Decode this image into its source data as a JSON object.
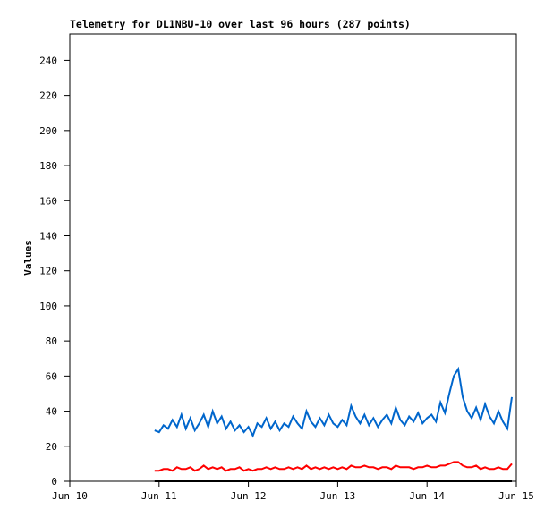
{
  "chart_data": {
    "type": "line",
    "title": "Telemetry for DL1NBU-10 over last 96 hours (287 points)",
    "y_label": "Values",
    "x": [
      0.95,
      1.0,
      1.05,
      1.1,
      1.15,
      1.2,
      1.25,
      1.3,
      1.35,
      1.4,
      1.45,
      1.5,
      1.55,
      1.6,
      1.65,
      1.7,
      1.75,
      1.8,
      1.85,
      1.9,
      1.95,
      2.0,
      2.05,
      2.1,
      2.15,
      2.2,
      2.25,
      2.3,
      2.35,
      2.4,
      2.45,
      2.5,
      2.55,
      2.6,
      2.65,
      2.7,
      2.75,
      2.8,
      2.85,
      2.9,
      2.95,
      3.0,
      3.05,
      3.1,
      3.15,
      3.2,
      3.25,
      3.3,
      3.35,
      3.4,
      3.45,
      3.5,
      3.55,
      3.6,
      3.65,
      3.7,
      3.75,
      3.8,
      3.85,
      3.9,
      3.95,
      4.0,
      4.05,
      4.1,
      4.15,
      4.2,
      4.25,
      4.3,
      4.35,
      4.4,
      4.45,
      4.5,
      4.55,
      4.6,
      4.65,
      4.7,
      4.75,
      4.8,
      4.85,
      4.9,
      4.95
    ],
    "series": [
      {
        "color": "#0066cc",
        "values": [
          29,
          28,
          32,
          30,
          35,
          31,
          38,
          30,
          36,
          29,
          33,
          38,
          31,
          40,
          33,
          37,
          30,
          34,
          29,
          32,
          28,
          31,
          26,
          33,
          31,
          36,
          30,
          34,
          29,
          33,
          31,
          37,
          33,
          30,
          40,
          34,
          31,
          36,
          32,
          38,
          33,
          31,
          35,
          32,
          43,
          37,
          33,
          38,
          32,
          36,
          31,
          35,
          38,
          33,
          42,
          35,
          32,
          37,
          34,
          39,
          33,
          36,
          38,
          34,
          45,
          39,
          50,
          60,
          64,
          48,
          40,
          36,
          42,
          35,
          44,
          37,
          33,
          40,
          34,
          30,
          48
        ]
      },
      {
        "color": "#ff0000",
        "values": [
          6,
          6,
          7,
          7,
          6,
          8,
          7,
          7,
          8,
          6,
          7,
          9,
          7,
          8,
          7,
          8,
          6,
          7,
          7,
          8,
          6,
          7,
          6,
          7,
          7,
          8,
          7,
          8,
          7,
          7,
          8,
          7,
          8,
          7,
          9,
          7,
          8,
          7,
          8,
          7,
          8,
          7,
          8,
          7,
          9,
          8,
          8,
          9,
          8,
          8,
          7,
          8,
          8,
          7,
          9,
          8,
          8,
          8,
          7,
          8,
          8,
          9,
          8,
          8,
          9,
          9,
          10,
          11,
          11,
          9,
          8,
          8,
          9,
          7,
          8,
          7,
          7,
          8,
          7,
          7,
          10
        ]
      },
      {
        "color": "#000000",
        "values": [
          0,
          0,
          0,
          0,
          0,
          0,
          0,
          0,
          0,
          0,
          0,
          0,
          0,
          0,
          0,
          0,
          0,
          0,
          0,
          0,
          0,
          0,
          0,
          0,
          0,
          0,
          0,
          0,
          0,
          0,
          0,
          0,
          0,
          0,
          0,
          0,
          0,
          0,
          0,
          0,
          0,
          0,
          0,
          0,
          0,
          0,
          0,
          0,
          0,
          0,
          0,
          0,
          0,
          0,
          0,
          0,
          0,
          0,
          0,
          0,
          0,
          0,
          0,
          0,
          0,
          0,
          0,
          0,
          0,
          0,
          0,
          0,
          0,
          0,
          0,
          0,
          0,
          0,
          0,
          0,
          0
        ]
      }
    ],
    "xlim": [
      0,
      5
    ],
    "xticks": [
      {
        "value": 0,
        "label": "Jun 10"
      },
      {
        "value": 1,
        "label": "Jun 11"
      },
      {
        "value": 2,
        "label": "Jun 12"
      },
      {
        "value": 3,
        "label": "Jun 13"
      },
      {
        "value": 4,
        "label": "Jun 14"
      },
      {
        "value": 5,
        "label": "Jun 15"
      }
    ],
    "ylim": [
      0,
      255
    ],
    "yticks": [
      0,
      20,
      40,
      60,
      80,
      100,
      120,
      140,
      160,
      180,
      200,
      220,
      240
    ],
    "grid": false
  }
}
